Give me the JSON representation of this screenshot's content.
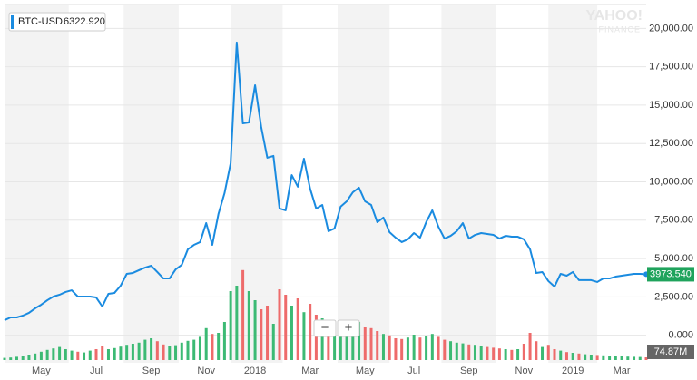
{
  "chart_data": {
    "type": "line",
    "legend_value": "6322.920",
    "categories": [
      null,
      null,
      null,
      null,
      null,
      null,
      "May",
      null,
      null,
      null,
      null,
      null,
      null,
      null,
      null,
      "Jul",
      null,
      null,
      null,
      null,
      null,
      null,
      null,
      null,
      "Sep",
      null,
      null,
      null,
      null,
      null,
      null,
      null,
      null,
      "Nov",
      null,
      null,
      null,
      null,
      null,
      null,
      null,
      "2018",
      null,
      null,
      null,
      null,
      null,
      null,
      null,
      null,
      "Mar",
      null,
      null,
      null,
      null,
      null,
      null,
      null,
      null,
      "May",
      null,
      null,
      null,
      null,
      null,
      null,
      null,
      "Jul",
      null,
      null,
      null,
      null,
      null,
      null,
      null,
      null,
      "Sep",
      null,
      null,
      null,
      null,
      null,
      null,
      null,
      null,
      "Nov",
      null,
      null,
      null,
      null,
      null,
      null,
      null,
      "2019",
      null,
      null,
      null,
      null,
      null,
      null,
      null,
      "Mar",
      null,
      null,
      null,
      null
    ],
    "series": [
      {
        "name": "BTC-USD",
        "color": "#1a8be0",
        "values": [
          980,
          1160,
          1160,
          1280,
          1460,
          1750,
          1990,
          2280,
          2520,
          2640,
          2820,
          2930,
          2520,
          2520,
          2520,
          2460,
          1870,
          2700,
          2760,
          3230,
          4000,
          4060,
          4240,
          4410,
          4530,
          4120,
          3700,
          3700,
          4290,
          4590,
          5600,
          5890,
          6070,
          7310,
          5890,
          7900,
          9260,
          11210,
          19080,
          13810,
          13870,
          16300,
          13580,
          11570,
          11690,
          8260,
          8140,
          10440,
          9680,
          11510,
          9560,
          8260,
          8490,
          6780,
          6960,
          8380,
          8730,
          9320,
          9620,
          8730,
          8490,
          7370,
          7670,
          6720,
          6360,
          6070,
          6250,
          6660,
          6360,
          7370,
          8140,
          7070,
          6300,
          6480,
          6780,
          7310,
          6300,
          6540,
          6660,
          6600,
          6540,
          6300,
          6480,
          6420,
          6420,
          6250,
          5600,
          4060,
          4120,
          3530,
          3170,
          4000,
          3880,
          4120,
          3590,
          3590,
          3590,
          3470,
          3700,
          3700,
          3820,
          3880,
          3940,
          4000,
          4000,
          3973.54
        ]
      }
    ],
    "current_price": {
      "value": 3973.54,
      "label": "3973.540",
      "color": "#1fa35c"
    },
    "ylim": [
      -1500,
      21500
    ],
    "yticks": [
      {
        "value": 0,
        "label": "0.000"
      },
      {
        "value": 2500,
        "label": "2,500.00"
      },
      {
        "value": 5000,
        "label": "5,000.00"
      },
      {
        "value": 7500,
        "label": "7,500.00"
      },
      {
        "value": 10000,
        "label": "10,000.00"
      },
      {
        "value": 12500,
        "label": "12,500.00"
      },
      {
        "value": 15000,
        "label": "15,000.00"
      },
      {
        "value": 17500,
        "label": "17,500.00"
      },
      {
        "value": 20000,
        "label": "20,000.00"
      }
    ],
    "grid": true,
    "volume": {
      "values": [
        60,
        70,
        90,
        110,
        150,
        180,
        230,
        280,
        320,
        360,
        300,
        260,
        230,
        210,
        260,
        300,
        380,
        300,
        330,
        370,
        420,
        450,
        480,
        560,
        600,
        520,
        430,
        390,
        410,
        480,
        530,
        560,
        640,
        880,
        720,
        750,
        1050,
        1900,
        2050,
        2480,
        1900,
        1650,
        1400,
        1500,
        1000,
        1950,
        1800,
        1500,
        1700,
        1320,
        1550,
        1250,
        1150,
        1000,
        1050,
        950,
        1000,
        980,
        1050,
        900,
        880,
        800,
        720,
        680,
        600,
        580,
        620,
        700,
        620,
        650,
        720,
        640,
        560,
        520,
        480,
        460,
        430,
        420,
        380,
        360,
        340,
        320,
        300,
        280,
        300,
        450,
        750,
        520,
        360,
        420,
        300,
        260,
        220,
        200,
        180,
        160,
        150,
        140,
        130,
        120,
        110,
        100,
        95,
        90,
        85,
        74.87
      ],
      "last_label": "74.87M",
      "vlim": [
        0,
        2500
      ],
      "up_color": "#3cba74",
      "down_color": "#ee6b6b"
    },
    "watermark": [
      "YAHOO!",
      "FINANCE"
    ],
    "controls": [
      "−",
      "+"
    ]
  }
}
